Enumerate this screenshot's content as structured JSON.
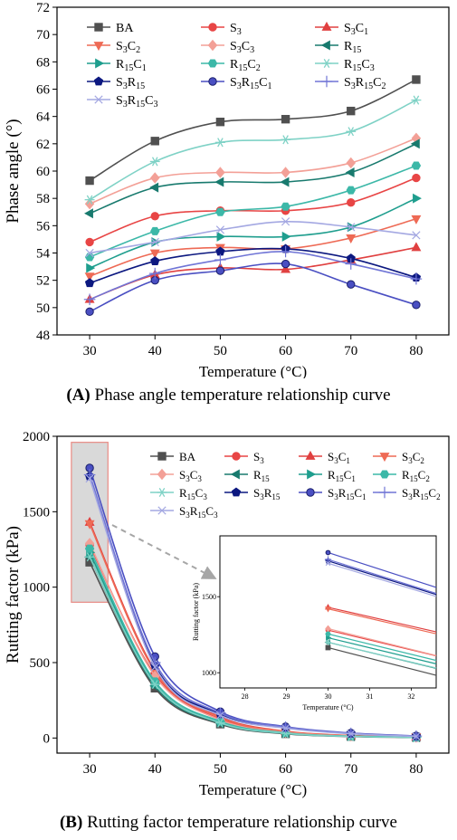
{
  "captions": [
    {
      "letter": "(A)",
      "text": " Phase angle temperature relationship curve"
    },
    {
      "letter": "(B)",
      "text": " Rutting factor temperature relationship curve"
    }
  ],
  "colors": {
    "BA": "#505050",
    "S3": "#e84545",
    "S3C1": "#e04040",
    "S3C2": "#ee6a55",
    "S3C3": "#f3a097",
    "R15": "#187a6e",
    "R15C1": "#1f9e8e",
    "R15C2": "#3cb8a8",
    "R15C3": "#7fd2c6",
    "S3R15": "#0c1880",
    "S3R15C1": "#4a4fc2",
    "S3R15C2": "#7075d6",
    "S3R15C3": "#a4a8e2"
  },
  "chart_data": [
    {
      "type": "line",
      "xlabel": "Temperature (°C)",
      "ylabel": "Phase angle (°)",
      "x": [
        30,
        40,
        50,
        60,
        70,
        80
      ],
      "xlim": [
        25,
        85
      ],
      "ylim": [
        48,
        72
      ],
      "yticks": [
        48,
        50,
        52,
        54,
        56,
        58,
        60,
        62,
        64,
        66,
        68,
        70,
        72
      ],
      "grid": false,
      "legend": "top-left, inside, 3 columns",
      "series": [
        {
          "key": "BA",
          "name": "BA",
          "marker": "square",
          "values": [
            59.3,
            62.2,
            63.6,
            63.8,
            64.4,
            66.7
          ]
        },
        {
          "key": "S3",
          "name": "S3",
          "marker": "circle",
          "values": [
            54.8,
            56.7,
            57.1,
            57.1,
            57.7,
            59.5
          ]
        },
        {
          "key": "S3C1",
          "name": "S3C1",
          "marker": "triangle-up",
          "values": [
            50.6,
            52.4,
            52.9,
            52.8,
            53.5,
            54.4
          ]
        },
        {
          "key": "S3C2",
          "name": "S3C2",
          "marker": "triangle-down",
          "values": [
            52.3,
            54.0,
            54.4,
            54.3,
            55.1,
            56.5
          ]
        },
        {
          "key": "S3C3",
          "name": "S3C3",
          "marker": "diamond",
          "values": [
            57.6,
            59.5,
            59.9,
            59.9,
            60.6,
            62.4
          ]
        },
        {
          "key": "R15",
          "name": "R15",
          "marker": "triangle-left",
          "values": [
            56.9,
            58.8,
            59.2,
            59.2,
            59.9,
            62.0
          ]
        },
        {
          "key": "R15C1",
          "name": "R15C1",
          "marker": "triangle-right",
          "values": [
            52.9,
            54.8,
            55.2,
            55.2,
            55.9,
            58.0
          ]
        },
        {
          "key": "R15C2",
          "name": "R15C2",
          "marker": "hexagon",
          "values": [
            53.7,
            55.6,
            57.0,
            57.4,
            58.6,
            60.4
          ]
        },
        {
          "key": "R15C3",
          "name": "R15C3",
          "marker": "star",
          "values": [
            57.9,
            60.7,
            62.1,
            62.3,
            62.9,
            65.2
          ]
        },
        {
          "key": "S3R15",
          "name": "S3R15",
          "marker": "pentagon",
          "values": [
            51.8,
            53.4,
            54.1,
            54.3,
            53.6,
            52.2
          ]
        },
        {
          "key": "S3R15C1",
          "name": "S3R15C1",
          "marker": "ball",
          "values": [
            49.7,
            52.0,
            52.7,
            53.2,
            51.7,
            50.2
          ]
        },
        {
          "key": "S3R15C2",
          "name": "S3R15C2",
          "marker": "plus",
          "values": [
            50.6,
            52.5,
            53.5,
            54.1,
            53.2,
            52.1
          ]
        },
        {
          "key": "S3R15C3",
          "name": "S3R15C3",
          "marker": "x",
          "values": [
            54.0,
            54.8,
            55.7,
            56.3,
            55.9,
            55.3
          ]
        }
      ]
    },
    {
      "type": "line",
      "xlabel": "Temperature (°C)",
      "ylabel": "Rutting factor (kPa)",
      "x": [
        30,
        40,
        50,
        60,
        70,
        80
      ],
      "xlim": [
        25,
        85
      ],
      "ylim": [
        -100,
        2000
      ],
      "yticks": [
        0,
        500,
        1000,
        1500,
        2000
      ],
      "grid": false,
      "legend": "top-right, inside, 4 columns",
      "annotation": "highlighted region around 30 °C with arrow to inset",
      "series": [
        {
          "key": "BA",
          "name": "BA",
          "marker": "square",
          "values": [
            1165,
            330,
            92,
            28,
            10,
            4
          ]
        },
        {
          "key": "S3",
          "name": "S3",
          "marker": "circle",
          "values": [
            1280,
            420,
            125,
            40,
            15,
            6
          ]
        },
        {
          "key": "S3C1",
          "name": "S3C1",
          "marker": "triangle-up",
          "values": [
            1430,
            450,
            140,
            45,
            17,
            7
          ]
        },
        {
          "key": "S3C2",
          "name": "S3C2",
          "marker": "triangle-down",
          "values": [
            1420,
            440,
            135,
            43,
            16,
            7
          ]
        },
        {
          "key": "S3C3",
          "name": "S3C3",
          "marker": "diamond",
          "values": [
            1290,
            410,
            120,
            38,
            14,
            6
          ]
        },
        {
          "key": "R15",
          "name": "R15",
          "marker": "triangle-left",
          "values": [
            1200,
            345,
            98,
            30,
            11,
            5
          ]
        },
        {
          "key": "R15C1",
          "name": "R15C1",
          "marker": "triangle-right",
          "values": [
            1230,
            360,
            103,
            32,
            12,
            5
          ]
        },
        {
          "key": "R15C2",
          "name": "R15C2",
          "marker": "hexagon",
          "values": [
            1255,
            375,
            110,
            34,
            12,
            5
          ]
        },
        {
          "key": "R15C3",
          "name": "R15C3",
          "marker": "star",
          "values": [
            1200,
            355,
            100,
            31,
            11,
            5
          ]
        },
        {
          "key": "S3R15",
          "name": "S3R15",
          "marker": "pentagon",
          "values": [
            1735,
            480,
            160,
            70,
            30,
            12
          ]
        },
        {
          "key": "S3R15C1",
          "name": "S3R15C1",
          "marker": "ball",
          "values": [
            1790,
            540,
            175,
            75,
            33,
            14
          ]
        },
        {
          "key": "S3R15C2",
          "name": "S3R15C2",
          "marker": "plus",
          "values": [
            1745,
            500,
            165,
            72,
            31,
            13
          ]
        },
        {
          "key": "S3R15C3",
          "name": "S3R15C3",
          "marker": "x",
          "values": [
            1720,
            470,
            150,
            65,
            28,
            11
          ]
        }
      ],
      "inset": {
        "xlabel": "Temperature (°C)",
        "ylabel": "Rutting factor (kPa)",
        "xlim": [
          27.4,
          32.6
        ],
        "xticks": [
          28,
          29,
          30,
          31,
          32
        ],
        "ylim": [
          900,
          1900
        ],
        "yticks": [
          1000,
          1500
        ],
        "slopes": [
          -70,
          -65,
          -62,
          -63,
          -68,
          -66,
          -66,
          -67,
          -65,
          -85,
          -88,
          -86,
          -84
        ]
      }
    }
  ]
}
